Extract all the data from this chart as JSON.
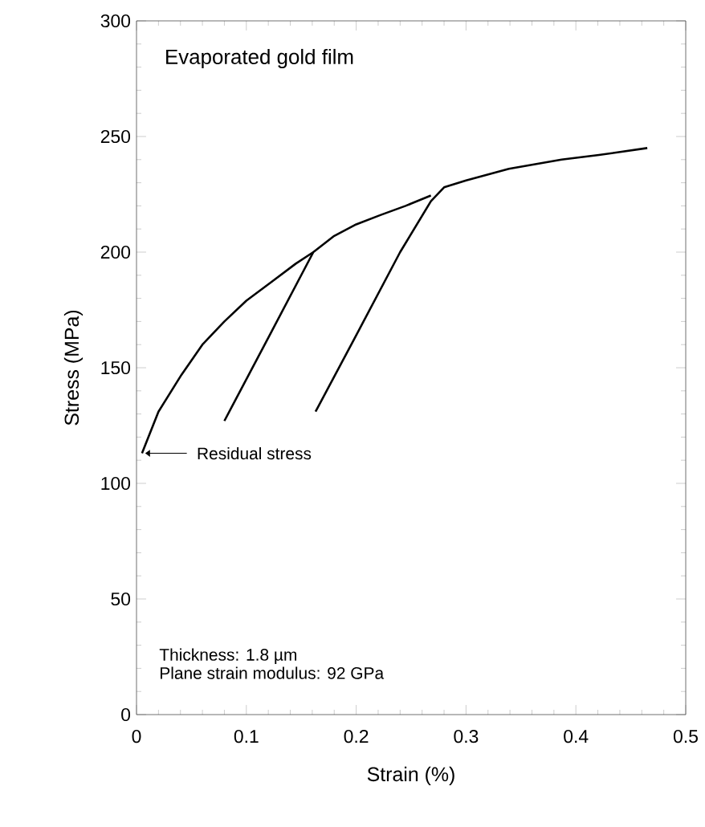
{
  "chart_data": {
    "type": "line",
    "title": "Evaporated gold film",
    "xlabel": "Strain (%)",
    "ylabel": "Stress (MPa)",
    "xlim": [
      0,
      0.5
    ],
    "xticks": [
      0,
      0.1,
      0.2,
      0.3,
      0.4,
      0.5
    ],
    "ylim": [
      0,
      300
    ],
    "yticks": [
      0,
      50,
      100,
      150,
      200,
      250,
      300
    ],
    "grid": false,
    "legend": false,
    "marker": "none",
    "line_style": "solid",
    "series": [
      {
        "color": "#000000",
        "x": [
          0.005,
          0.02,
          0.041,
          0.06,
          0.08,
          0.1,
          0.124,
          0.145,
          0.161
        ],
        "values": [
          113,
          131,
          147,
          160,
          170,
          179,
          187.5,
          195,
          200
        ]
      },
      {
        "color": "#000000",
        "x": [
          0.08,
          0.12,
          0.161,
          0.18,
          0.2,
          0.222,
          0.245,
          0.268
        ],
        "values": [
          127,
          163,
          200,
          207,
          212,
          216,
          220,
          224.5
        ]
      },
      {
        "color": "#000000",
        "x": [
          0.163,
          0.2,
          0.24,
          0.268,
          0.28,
          0.3,
          0.339,
          0.387,
          0.421,
          0.465
        ],
        "values": [
          131,
          164,
          200,
          222,
          228,
          231,
          236,
          240,
          242,
          245
        ]
      }
    ],
    "annotations": [
      "Residual stress",
      "Thickness: 1.8 µm",
      "Plane strain modulus: 92 GPa"
    ]
  }
}
